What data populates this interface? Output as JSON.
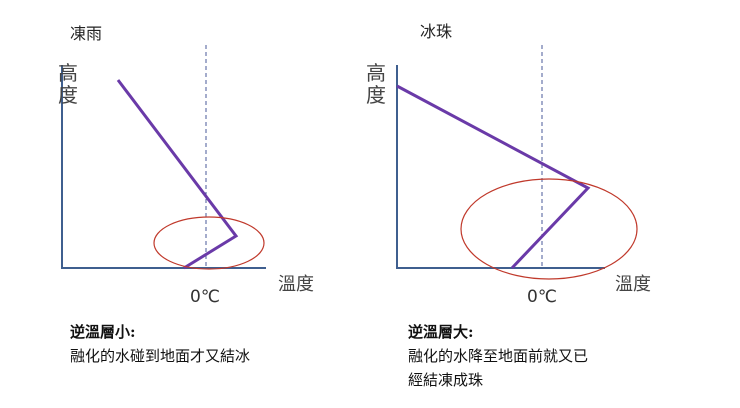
{
  "colors": {
    "axis": "#3f5f8f",
    "profile": "#6a3aa8",
    "ellipse": "#c0392b",
    "dashed": "#4a5a9a"
  },
  "panels": [
    {
      "title": "凍雨",
      "ylabel": "高度",
      "xlabel": "溫度",
      "zero_label": "0℃",
      "caption_heading": "逆溫層小:",
      "caption_lines": [
        "融化的水碰到地面才又結冰"
      ]
    },
    {
      "title": "冰珠",
      "ylabel": "高度",
      "xlabel": "溫度",
      "zero_label": "0℃",
      "caption_heading": "逆溫層大:",
      "caption_lines": [
        "融化的水降至地面前就又已",
        "經結凍成珠"
      ]
    }
  ]
}
